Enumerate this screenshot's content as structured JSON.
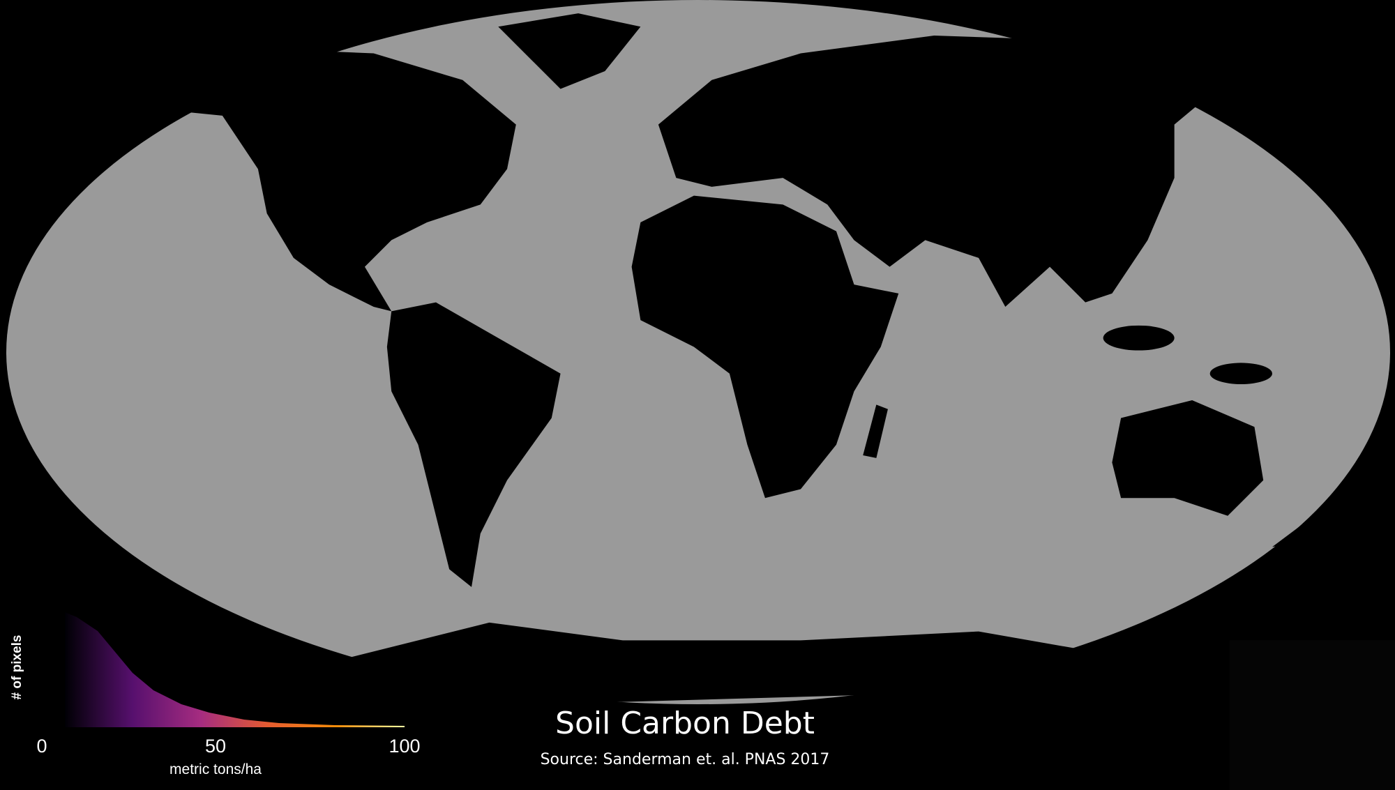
{
  "map": {
    "title": "Soil Carbon Debt",
    "source": "Source: Sanderman et. al. PNAS 2017",
    "projection": "Robinson-like elliptical world map",
    "ocean_color": "#9a9a9a",
    "land_low_color": "#000000"
  },
  "legend": {
    "y_label": "# of pixels",
    "x_label": "metric tons/ha",
    "ticks": [
      "0",
      "50",
      "100"
    ],
    "range": [
      0,
      100
    ],
    "colormap": "inferno",
    "colormap_stops": [
      "#000004",
      "#57106e",
      "#a52c60",
      "#e55c30",
      "#f98e09",
      "#fcffa4"
    ]
  }
}
